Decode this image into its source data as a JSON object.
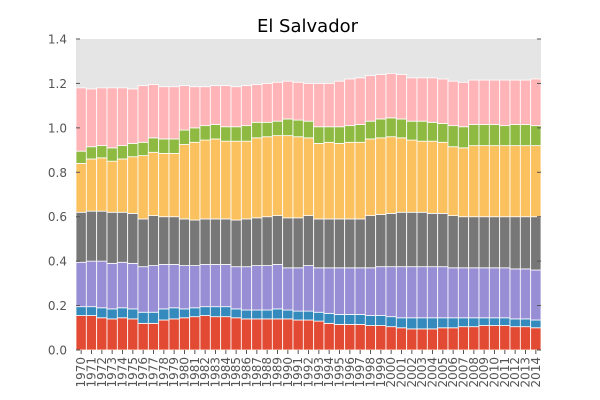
{
  "chart_data": {
    "type": "bar",
    "stacked": true,
    "title": "El Salvador",
    "xlabel": "",
    "ylabel": "",
    "ylim": [
      0,
      1.4
    ],
    "yticks": [
      0.0,
      0.2,
      0.4,
      0.6,
      0.8,
      1.0,
      1.2,
      1.4
    ],
    "ytick_labels": [
      "0.0",
      "0.2",
      "0.4",
      "0.6",
      "0.8",
      "1.0",
      "1.2",
      "1.4"
    ],
    "grid": false,
    "plot_background": "#e5e5e5",
    "categories": [
      "1970",
      "1971",
      "1972",
      "1973",
      "1974",
      "1975",
      "1976",
      "1977",
      "1978",
      "1979",
      "1980",
      "1981",
      "1982",
      "1983",
      "1984",
      "1985",
      "1986",
      "1987",
      "1988",
      "1989",
      "1990",
      "1991",
      "1992",
      "1993",
      "1994",
      "1995",
      "1996",
      "1997",
      "1998",
      "1999",
      "2000",
      "2001",
      "2002",
      "2003",
      "2004",
      "2005",
      "2006",
      "2007",
      "2008",
      "2009",
      "2010",
      "2011",
      "2012",
      "2013",
      "2014"
    ],
    "series": [
      {
        "color": "#e24a33",
        "values": [
          0.155,
          0.155,
          0.145,
          0.14,
          0.145,
          0.14,
          0.12,
          0.12,
          0.135,
          0.14,
          0.145,
          0.15,
          0.155,
          0.15,
          0.15,
          0.145,
          0.14,
          0.14,
          0.14,
          0.14,
          0.14,
          0.135,
          0.135,
          0.13,
          0.12,
          0.115,
          0.115,
          0.115,
          0.11,
          0.11,
          0.105,
          0.1,
          0.095,
          0.095,
          0.095,
          0.1,
          0.1,
          0.105,
          0.105,
          0.11,
          0.11,
          0.11,
          0.105,
          0.105,
          0.1
        ]
      },
      {
        "color": "#348abd",
        "values": [
          0.04,
          0.04,
          0.045,
          0.045,
          0.045,
          0.045,
          0.05,
          0.05,
          0.05,
          0.05,
          0.04,
          0.04,
          0.04,
          0.045,
          0.045,
          0.04,
          0.04,
          0.04,
          0.04,
          0.045,
          0.04,
          0.04,
          0.04,
          0.04,
          0.045,
          0.045,
          0.045,
          0.045,
          0.045,
          0.045,
          0.045,
          0.045,
          0.05,
          0.05,
          0.05,
          0.045,
          0.045,
          0.04,
          0.04,
          0.035,
          0.035,
          0.035,
          0.035,
          0.035,
          0.035
        ]
      },
      {
        "color": "#988ed5",
        "values": [
          0.2,
          0.205,
          0.21,
          0.205,
          0.205,
          0.205,
          0.205,
          0.21,
          0.2,
          0.195,
          0.195,
          0.19,
          0.19,
          0.19,
          0.19,
          0.19,
          0.195,
          0.2,
          0.2,
          0.2,
          0.19,
          0.195,
          0.205,
          0.2,
          0.205,
          0.21,
          0.21,
          0.21,
          0.215,
          0.22,
          0.225,
          0.23,
          0.23,
          0.23,
          0.23,
          0.23,
          0.225,
          0.225,
          0.225,
          0.225,
          0.225,
          0.225,
          0.225,
          0.225,
          0.225
        ]
      },
      {
        "color": "#777777",
        "values": [
          0.225,
          0.225,
          0.225,
          0.23,
          0.225,
          0.225,
          0.215,
          0.225,
          0.215,
          0.215,
          0.21,
          0.205,
          0.205,
          0.205,
          0.205,
          0.21,
          0.215,
          0.215,
          0.22,
          0.22,
          0.225,
          0.225,
          0.225,
          0.22,
          0.22,
          0.22,
          0.22,
          0.22,
          0.235,
          0.235,
          0.24,
          0.245,
          0.245,
          0.245,
          0.24,
          0.24,
          0.235,
          0.23,
          0.23,
          0.23,
          0.23,
          0.23,
          0.235,
          0.235,
          0.24
        ]
      },
      {
        "color": "#fbc15e",
        "values": [
          0.22,
          0.235,
          0.24,
          0.23,
          0.24,
          0.255,
          0.285,
          0.285,
          0.285,
          0.285,
          0.335,
          0.35,
          0.355,
          0.36,
          0.35,
          0.355,
          0.35,
          0.36,
          0.36,
          0.36,
          0.37,
          0.365,
          0.35,
          0.34,
          0.345,
          0.34,
          0.345,
          0.345,
          0.345,
          0.345,
          0.345,
          0.335,
          0.325,
          0.32,
          0.325,
          0.32,
          0.31,
          0.31,
          0.32,
          0.32,
          0.32,
          0.32,
          0.32,
          0.32,
          0.32
        ]
      },
      {
        "color": "#8eba42",
        "values": [
          0.055,
          0.055,
          0.055,
          0.06,
          0.06,
          0.06,
          0.06,
          0.065,
          0.065,
          0.065,
          0.065,
          0.065,
          0.065,
          0.065,
          0.065,
          0.065,
          0.07,
          0.07,
          0.065,
          0.065,
          0.075,
          0.075,
          0.075,
          0.075,
          0.07,
          0.075,
          0.075,
          0.08,
          0.08,
          0.085,
          0.085,
          0.085,
          0.085,
          0.09,
          0.085,
          0.085,
          0.095,
          0.095,
          0.095,
          0.095,
          0.095,
          0.09,
          0.095,
          0.095,
          0.09
        ]
      },
      {
        "color": "#ffb5b8",
        "values": [
          0.285,
          0.26,
          0.26,
          0.27,
          0.26,
          0.245,
          0.255,
          0.24,
          0.235,
          0.235,
          0.2,
          0.185,
          0.175,
          0.175,
          0.185,
          0.18,
          0.18,
          0.17,
          0.175,
          0.175,
          0.17,
          0.17,
          0.17,
          0.195,
          0.195,
          0.205,
          0.21,
          0.21,
          0.205,
          0.2,
          0.2,
          0.2,
          0.195,
          0.195,
          0.2,
          0.2,
          0.2,
          0.2,
          0.2,
          0.2,
          0.2,
          0.205,
          0.2,
          0.2,
          0.21
        ]
      }
    ]
  }
}
